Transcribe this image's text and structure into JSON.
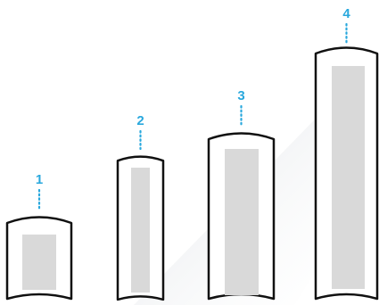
{
  "colors": {
    "accent": "#29a8dd",
    "outline": "#111111",
    "inner_fill": "#d9d9d9",
    "background": "#ffffff",
    "sheen": "#eef0f2"
  },
  "steps": [
    {
      "label": "1"
    },
    {
      "label": "2"
    },
    {
      "label": "3"
    },
    {
      "label": "4"
    }
  ]
}
